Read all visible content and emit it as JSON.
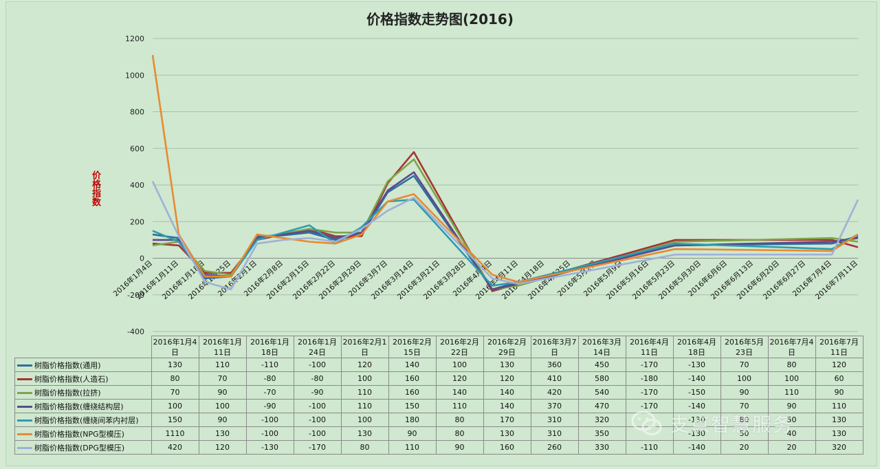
{
  "chart_data": {
    "type": "line",
    "title": "价格指数走势图(2016)",
    "ylabel": "价格指数",
    "ylim": [
      -400,
      1200
    ],
    "yticks": [
      -400,
      -200,
      0,
      200,
      400,
      600,
      800,
      1000,
      1200
    ],
    "grid": true,
    "x": [
      "2016年1月4日",
      "2016年1月11日",
      "2016年1月18日",
      "2016年1月25日",
      "2016年2月1日",
      "2016年2月8日",
      "2016年2月15日",
      "2016年2月22日",
      "2016年2月29日",
      "2016年3月7日",
      "2016年3月14日",
      "2016年3月21日",
      "2016年3月28日",
      "2016年4月4日",
      "2016年4月11日",
      "2016年4月18日",
      "2016年4月25日",
      "2016年5月2日",
      "2016年5月9日",
      "2016年5月16日",
      "2016年5月23日",
      "2016年5月30日",
      "2016年6月6日",
      "2016年6月13日",
      "2016年6月20日",
      "2016年6月27日",
      "2016年7月4日",
      "2016年7月11日"
    ],
    "table_columns": [
      "2016年1月4日",
      "2016年1月11日",
      "2016年1月18日",
      "2016年1月24日",
      "2016年2月1日",
      "2016年2月15日",
      "2016年2月22日",
      "2016年2月29日",
      "2016年3月7日",
      "2016年3月14日",
      "2016年4月11日",
      "2016年4月18日",
      "2016年5月23日",
      "2016年7月4日",
      "2016年7月11日"
    ],
    "series": [
      {
        "name": "树脂价格指数(通用)",
        "color": "#2e6f9e",
        "values": [
          130,
          110,
          -110,
          -100,
          120,
          125,
          140,
          100,
          130,
          360,
          450,
          null,
          null,
          -170,
          -130,
          null,
          null,
          null,
          null,
          null,
          70,
          null,
          null,
          null,
          null,
          null,
          80,
          120
        ],
        "table_values": [
          "130",
          "110",
          "-110",
          "-100",
          "120",
          "140",
          "100",
          "130",
          "360",
          "450",
          "-170",
          "-130",
          "70",
          "80",
          "120"
        ]
      },
      {
        "name": "树脂价格指数(人造石)",
        "color": "#a83232",
        "values": [
          80,
          70,
          -80,
          -80,
          100,
          130,
          160,
          120,
          120,
          410,
          580,
          null,
          null,
          -180,
          -140,
          null,
          null,
          null,
          null,
          null,
          100,
          null,
          null,
          null,
          null,
          null,
          100,
          60
        ],
        "table_values": [
          "80",
          "70",
          "-80",
          "-80",
          "100",
          "160",
          "120",
          "120",
          "410",
          "580",
          "-180",
          "-140",
          "100",
          "100",
          "60"
        ]
      },
      {
        "name": "树脂价格指数(拉挤)",
        "color": "#7fa34a",
        "values": [
          70,
          90,
          -70,
          -90,
          110,
          135,
          160,
          140,
          140,
          420,
          540,
          null,
          null,
          -170,
          -150,
          null,
          null,
          null,
          null,
          null,
          90,
          null,
          null,
          null,
          null,
          null,
          110,
          90
        ],
        "table_values": [
          "70",
          "90",
          "-70",
          "-90",
          "110",
          "160",
          "140",
          "140",
          "420",
          "540",
          "-170",
          "-150",
          "90",
          "110",
          "90"
        ]
      },
      {
        "name": "树脂价格指数(缠绕结构层)",
        "color": "#5a4a8e",
        "values": [
          100,
          100,
          -90,
          -100,
          110,
          130,
          150,
          110,
          140,
          370,
          470,
          null,
          null,
          -170,
          -140,
          null,
          null,
          null,
          null,
          null,
          70,
          null,
          null,
          null,
          null,
          null,
          90,
          110
        ],
        "table_values": [
          "100",
          "100",
          "-90",
          "-100",
          "110",
          "150",
          "110",
          "140",
          "370",
          "470",
          "-170",
          "-140",
          "70",
          "90",
          "110"
        ]
      },
      {
        "name": "树脂价格指数(缠绕间苯内衬层)",
        "color": "#2e9bb0",
        "values": [
          150,
          90,
          -100,
          -100,
          100,
          140,
          180,
          80,
          170,
          310,
          320,
          null,
          null,
          -150,
          -130,
          null,
          null,
          null,
          null,
          null,
          80,
          null,
          null,
          null,
          null,
          null,
          50,
          130
        ],
        "table_values": [
          "150",
          "90",
          "-100",
          "-100",
          "100",
          "180",
          "80",
          "170",
          "310",
          "320",
          "",
          "-130",
          "80",
          "50",
          "130"
        ]
      },
      {
        "name": "树脂价格指数(NPG型模压)",
        "color": "#e88a30",
        "values": [
          1110,
          130,
          -100,
          -100,
          130,
          110,
          90,
          80,
          130,
          310,
          350,
          null,
          null,
          -90,
          -130,
          null,
          null,
          null,
          null,
          null,
          50,
          null,
          null,
          null,
          null,
          null,
          40,
          130
        ],
        "table_values": [
          "1110",
          "130",
          "-100",
          "-100",
          "130",
          "90",
          "80",
          "130",
          "310",
          "350",
          "",
          "-130",
          "50",
          "40",
          "130"
        ]
      },
      {
        "name": "树脂价格指数(DPG型模压)",
        "color": "#9fb0d8",
        "values": [
          420,
          120,
          -130,
          -170,
          80,
          100,
          110,
          90,
          160,
          260,
          330,
          null,
          null,
          -110,
          -140,
          null,
          null,
          null,
          null,
          null,
          20,
          null,
          null,
          null,
          null,
          null,
          20,
          320
        ],
        "table_values": [
          "420",
          "120",
          "-130",
          "-170",
          "80",
          "110",
          "90",
          "160",
          "260",
          "330",
          "-110",
          "-140",
          "20",
          "20",
          "320"
        ]
      }
    ]
  },
  "watermark": {
    "text": "支点智慧服务",
    "icon": "wechat-icon"
  }
}
